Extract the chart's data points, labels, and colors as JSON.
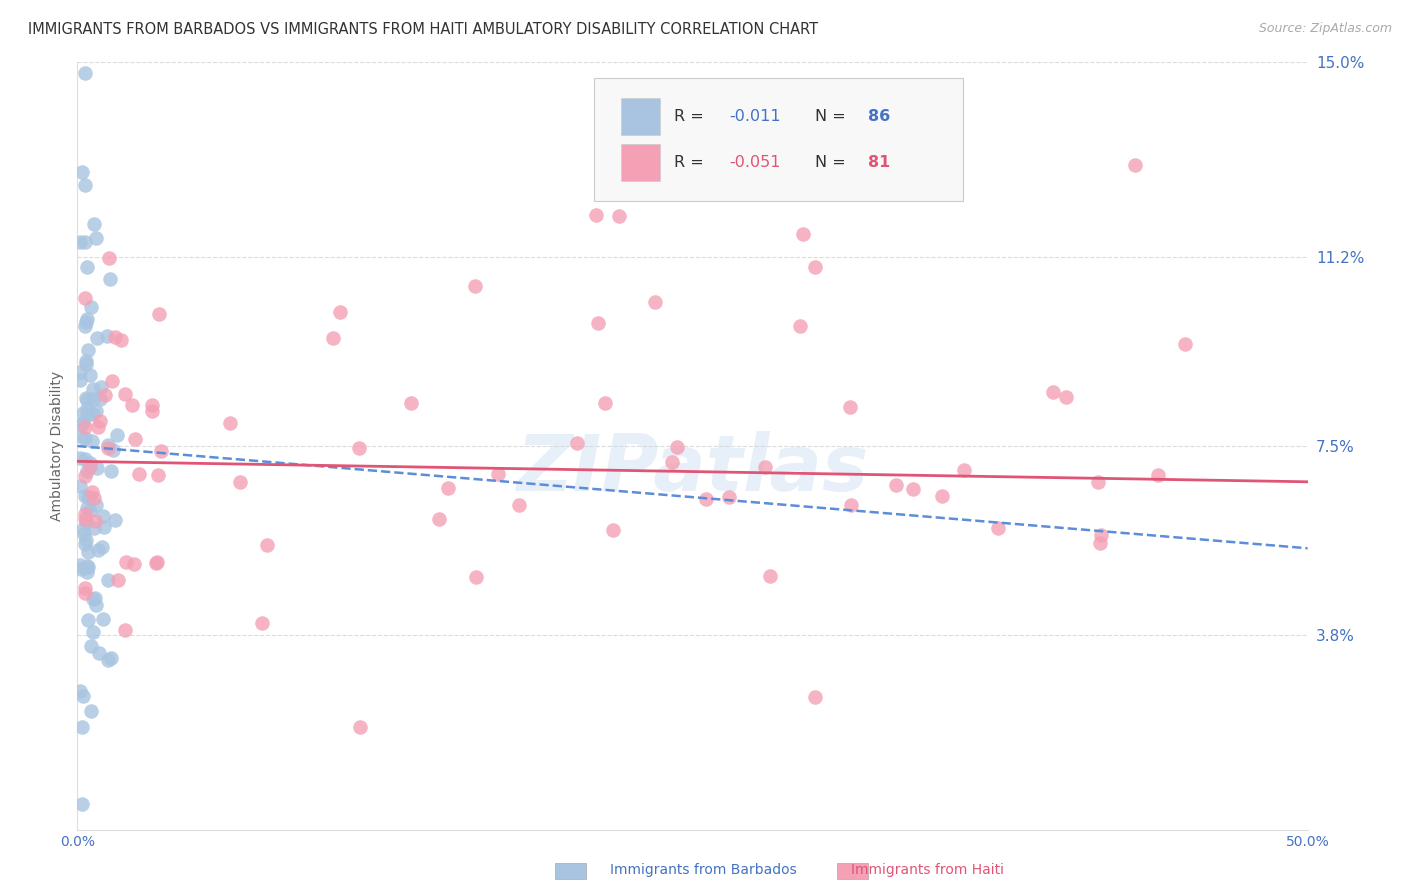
{
  "title": "IMMIGRANTS FROM BARBADOS VS IMMIGRANTS FROM HAITI AMBULATORY DISABILITY CORRELATION CHART",
  "source": "Source: ZipAtlas.com",
  "ylabel": "Ambulatory Disability",
  "x_min": 0.0,
  "x_max": 0.5,
  "y_min": 0.0,
  "y_max": 0.15,
  "y_ticks": [
    0.038,
    0.075,
    0.112,
    0.15
  ],
  "y_tick_labels": [
    "3.8%",
    "7.5%",
    "11.2%",
    "15.0%"
  ],
  "x_tick_labels": [
    "0.0%",
    "",
    "",
    "",
    "",
    "50.0%"
  ],
  "x_ticks": [
    0.0,
    0.1,
    0.2,
    0.3,
    0.4,
    0.5
  ],
  "legend_r1_label": "R = ",
  "legend_r1_val": "-0.011",
  "legend_n1_label": "N = ",
  "legend_n1_val": "86",
  "legend_r2_label": "R = ",
  "legend_r2_val": "-0.051",
  "legend_n2_label": "N = ",
  "legend_n2_val": "81",
  "watermark": "ZIPatlas",
  "barbados_color": "#a8c4e0",
  "haiti_color": "#f4a0b5",
  "barbados_line_color": "#5b8dd9",
  "haiti_line_color": "#e05575",
  "background_color": "#ffffff",
  "grid_color": "#cccccc",
  "title_color": "#333333",
  "tick_color": "#4472c4",
  "source_color": "#aaaaaa",
  "legend_text_color": "#333333",
  "legend_val_color": "#4472c4",
  "bottom_label1": "Immigrants from Barbados",
  "bottom_label2": "Immigrants from Haiti",
  "bottom_label2_color": "#e05575"
}
